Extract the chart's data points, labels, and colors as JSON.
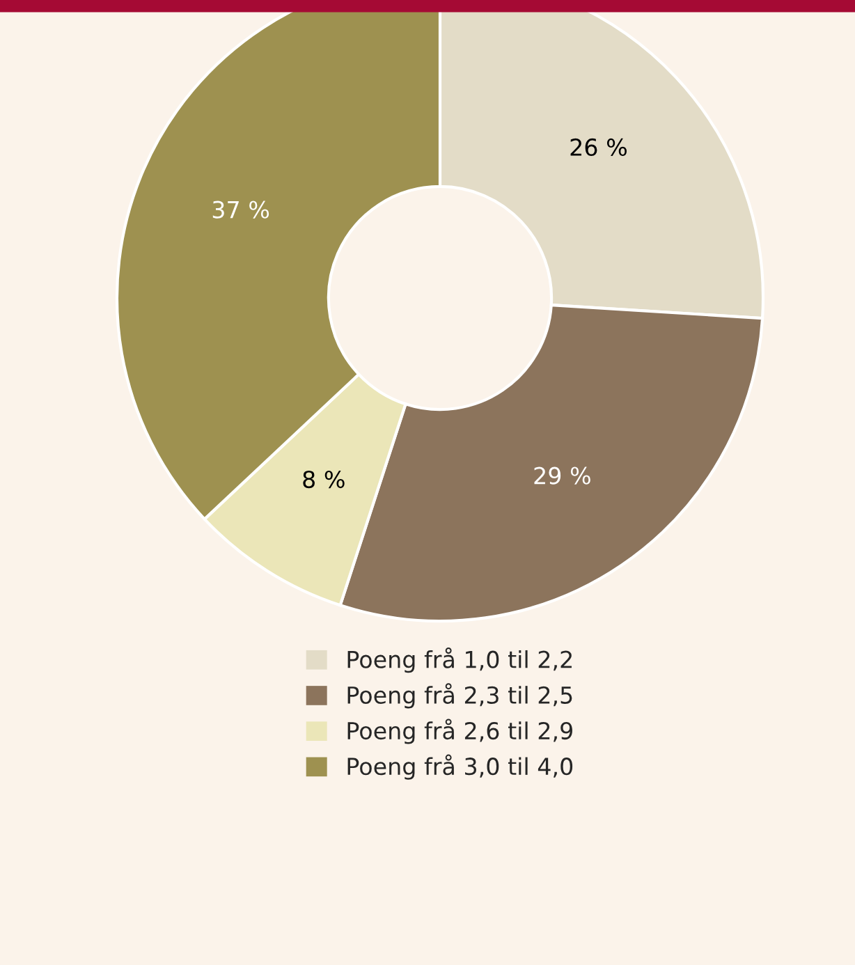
{
  "chart_data": {
    "type": "donut",
    "categories": [
      "Poeng frå 1,0 til 2,2",
      "Poeng frå 2,3 til 2,5",
      "Poeng frå 2,6 til 2,9",
      "Poeng frå 3,0 til 4,0"
    ],
    "values": [
      26,
      29,
      8,
      37
    ],
    "colors": [
      "#e3dcc7",
      "#8c745c",
      "#ebe6b8",
      "#9e9150"
    ],
    "value_labels": [
      "26 %",
      "29 %",
      "8 %",
      "37 %"
    ],
    "legend": "bottom"
  }
}
